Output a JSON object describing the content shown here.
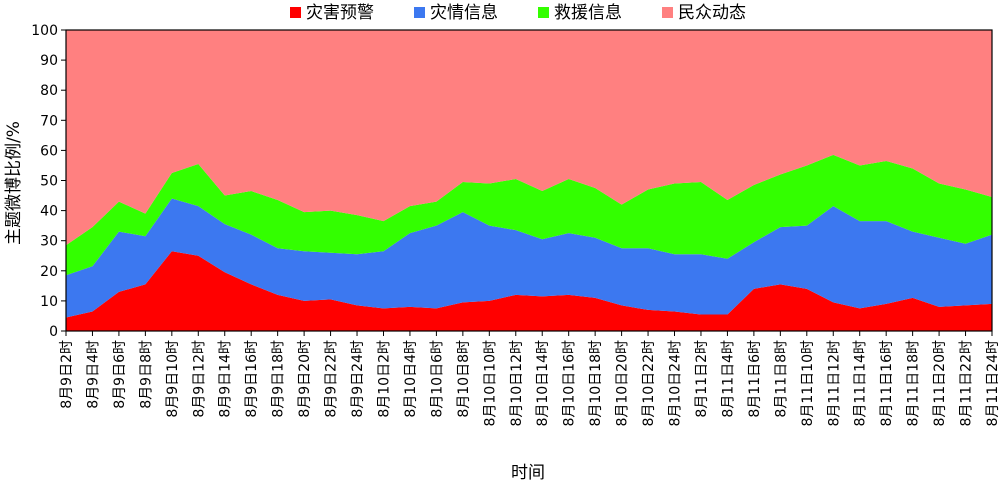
{
  "chart_data": {
    "type": "area",
    "stacked": true,
    "xlabel": "时间",
    "ylabel": "主题微博比例/%",
    "ylim": [
      0,
      100
    ],
    "yticks": [
      0,
      10,
      20,
      30,
      40,
      50,
      60,
      70,
      80,
      90,
      100
    ],
    "grid": false,
    "legend_position": "top",
    "categories": [
      "8月9日2时",
      "8月9日4时",
      "8月9日6时",
      "8月9日8时",
      "8月9日10时",
      "8月9日12时",
      "8月9日14时",
      "8月9日16时",
      "8月9日18时",
      "8月9日20时",
      "8月9日22时",
      "8月9日24时",
      "8月10日2时",
      "8月10日4时",
      "8月10日6时",
      "8月10日8时",
      "8月10日10时",
      "8月10日12时",
      "8月10日14时",
      "8月10日16时",
      "8月10日18时",
      "8月10日20时",
      "8月10日22时",
      "8月10日24时",
      "8月11日2时",
      "8月11日4时",
      "8月11日6时",
      "8月11日8时",
      "8月11日10时",
      "8月11日12时",
      "8月11日14时",
      "8月11日16时",
      "8月11日18时",
      "8月11日20时",
      "8月11日22时",
      "8月11日24时"
    ],
    "series": [
      {
        "name": "灾害预警",
        "color": "#ff0000",
        "values": [
          4.5,
          6.5,
          13,
          15.5,
          26.5,
          25,
          19.5,
          15.5,
          12,
          10,
          10.5,
          8.5,
          7.5,
          8,
          7.5,
          9.5,
          10,
          12,
          11.5,
          12,
          11,
          8.5,
          7,
          6.5,
          5.5,
          5.5,
          14,
          15.5,
          14,
          9.5,
          7.5,
          9,
          11,
          8,
          8.5,
          9
        ]
      },
      {
        "name": "灾情信息",
        "color": "#3c78f0",
        "values": [
          14,
          15,
          20,
          16,
          17.5,
          16.5,
          16,
          16.5,
          15.5,
          16.5,
          15.5,
          17,
          19,
          24.5,
          27.5,
          30,
          25,
          21.5,
          19,
          20.5,
          20,
          19,
          20.5,
          19,
          20,
          18.5,
          15.5,
          19,
          21,
          32,
          29,
          27.5,
          22,
          23,
          20.5,
          23
        ]
      },
      {
        "name": "救援信息",
        "color": "#33ff00",
        "values": [
          10,
          13,
          10,
          7.5,
          8.5,
          14,
          9.5,
          14.5,
          16,
          13,
          14,
          13,
          10,
          9,
          8,
          10,
          14,
          17,
          16,
          18,
          16.5,
          14.5,
          19.5,
          23.5,
          24,
          19.5,
          19,
          17.5,
          20,
          17,
          18.5,
          20,
          21,
          18,
          18,
          12.5
        ]
      },
      {
        "name": "民众动态",
        "color": "#ff8080",
        "values": [
          71.5,
          65.5,
          57,
          61,
          47.5,
          44.5,
          55,
          53.5,
          56.5,
          60.5,
          60,
          61.5,
          63.5,
          58.5,
          57,
          50.5,
          51,
          49.5,
          53.5,
          49.5,
          52.5,
          58,
          53,
          51,
          50.5,
          56.5,
          51.5,
          48,
          45,
          41.5,
          45,
          43.5,
          46,
          51,
          53,
          55.5
        ]
      }
    ]
  }
}
